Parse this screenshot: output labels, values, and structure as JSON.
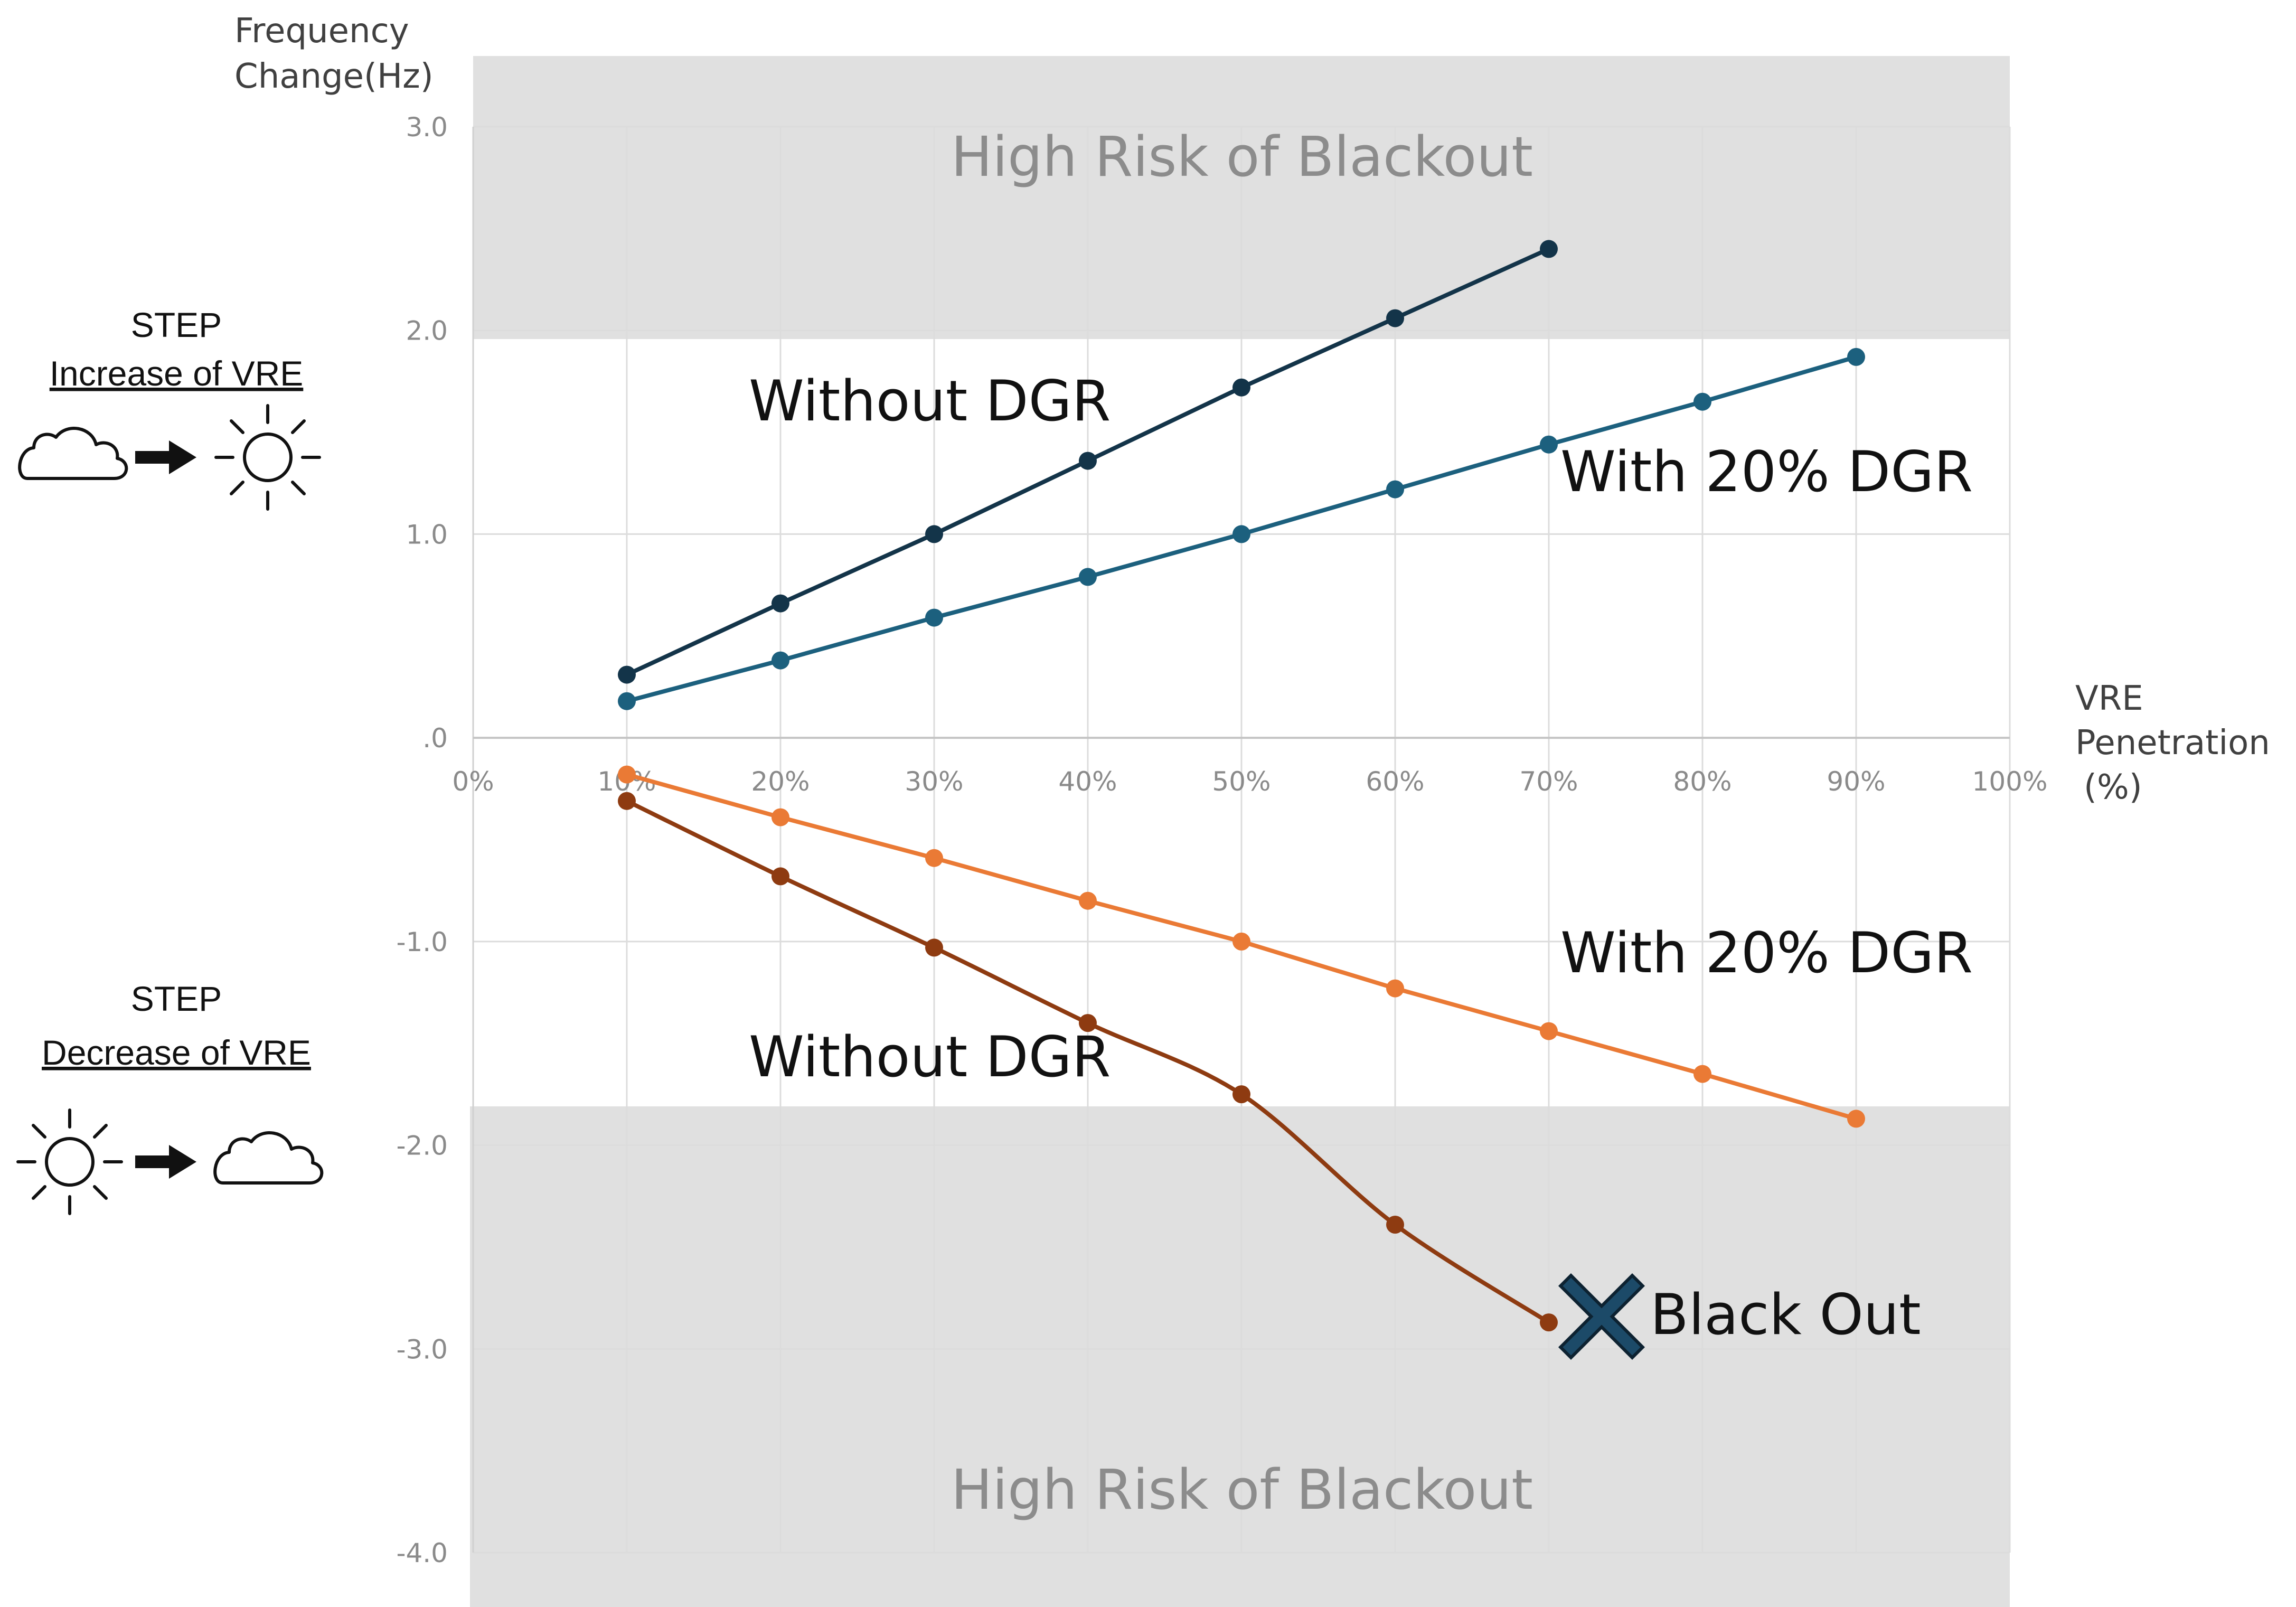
{
  "colors": {
    "zone": "#e0e0e0",
    "grid": "#dcdcdc",
    "increase_without": "#133449",
    "increase_with": "#1c607e",
    "decrease_without": "#8e3b11",
    "decrease_with": "#ea7a35",
    "blackout_marker": "#1c4a68"
  },
  "side_panel": {
    "increase": {
      "step": "STEP",
      "label": "Increase of VRE",
      "icons": [
        "cloud-icon",
        "arrow-right-icon",
        "sun-icon"
      ]
    },
    "decrease": {
      "step": "STEP",
      "label": "Decrease of VRE",
      "icons": [
        "sun-icon",
        "arrow-right-icon",
        "cloud-icon"
      ]
    }
  },
  "annotations": {
    "zone_top": "High Risk of Blackout",
    "zone_bottom": "High Risk of Blackout",
    "increase_without": "Without DGR",
    "increase_with": "With 20% DGR",
    "decrease_with": "With 20% DGR",
    "decrease_without": "Without DGR",
    "blackout": "Black Out",
    "blackout_icon": "x-mark-icon"
  },
  "chart_data": {
    "type": "line",
    "ylabel_lines": [
      "Frequency",
      "Change(Hz)"
    ],
    "xlabel_lines": [
      "VRE",
      "Penetration",
      "(%)"
    ],
    "xlim": [
      0,
      100
    ],
    "ylim": [
      -4,
      3
    ],
    "x_ticks": [
      "0%",
      "10%",
      "20%",
      "30%",
      "40%",
      "50%",
      "60%",
      "70%",
      "80%",
      "90%",
      "100%"
    ],
    "y_ticks": [
      "3.0",
      "2.0",
      "1.0",
      ".0",
      "-1.0",
      "-2.0",
      "-3.0",
      "-4.0"
    ],
    "grid": true,
    "high_risk_zones": [
      [
        1.95,
        3.35
      ],
      [
        -1.8,
        -4.3
      ]
    ],
    "series": [
      {
        "x": [
          10,
          20,
          30,
          40,
          50,
          60,
          70
        ],
        "values": [
          0.31,
          0.66,
          1.0,
          1.36,
          1.72,
          2.06,
          2.4
        ],
        "color": "#133449"
      },
      {
        "x": [
          10,
          20,
          30,
          40,
          50,
          60,
          70,
          80,
          90
        ],
        "values": [
          0.18,
          0.38,
          0.59,
          0.79,
          1.0,
          1.22,
          1.44,
          1.65,
          1.87
        ],
        "color": "#1c607e"
      },
      {
        "x": [
          10,
          20,
          30,
          40,
          50,
          60,
          70,
          80,
          90
        ],
        "values": [
          -0.18,
          -0.39,
          -0.59,
          -0.8,
          -1.0,
          -1.23,
          -1.44,
          -1.65,
          -1.87
        ],
        "color": "#ea7a35"
      },
      {
        "x": [
          10,
          20,
          30,
          40,
          50,
          60,
          70
        ],
        "values": [
          -0.31,
          -0.68,
          -1.03,
          -1.4,
          -1.75,
          -2.39,
          -2.87
        ],
        "color": "#8e3b11",
        "smooth": true
      }
    ]
  }
}
